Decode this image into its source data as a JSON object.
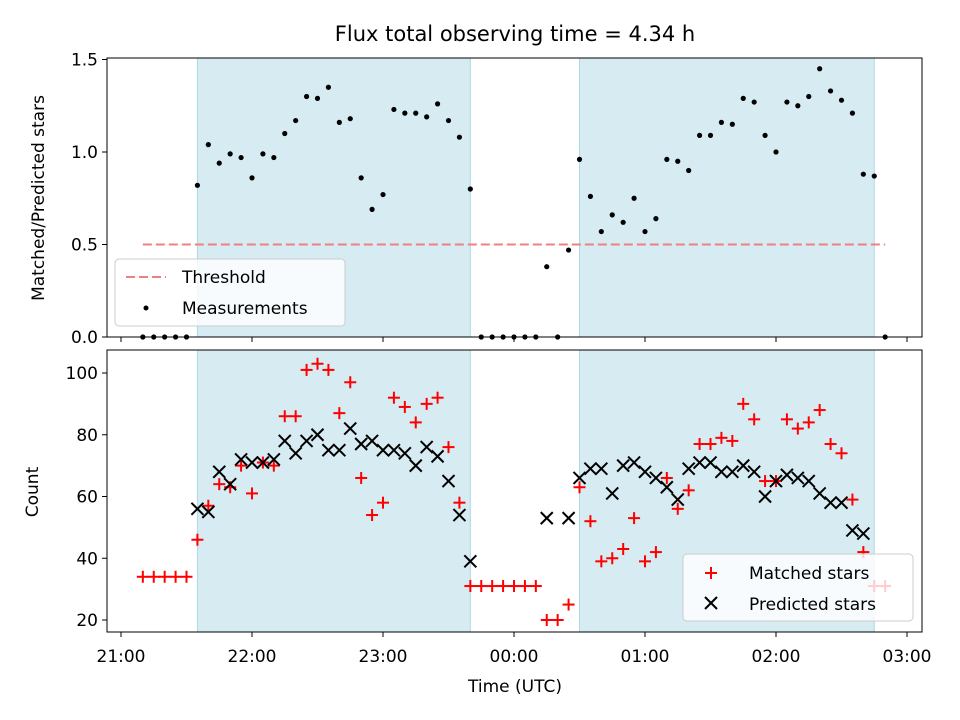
{
  "title": "Flux total observing time = 4.34 h",
  "chart_data": [
    {
      "type": "scatter",
      "ylabel": "Matched/Predicted stars",
      "ylim": [
        0,
        1.52
      ],
      "yticks": [
        "0.0",
        "0.5",
        "1.0",
        "1.5"
      ],
      "legend_position": "lower-left",
      "shaded_intervals": [
        [
          "21:35",
          "23:40"
        ],
        [
          "00:30",
          "02:45"
        ]
      ],
      "threshold": {
        "name": "Threshold",
        "value": 0.5,
        "x_range": [
          "21:10",
          "02:50"
        ],
        "color": "#f08080"
      },
      "series": [
        {
          "name": "Measurements",
          "marker": "dot",
          "color": "#000000",
          "points": [
            [
              "21:10",
              0
            ],
            [
              "21:15",
              0
            ],
            [
              "21:20",
              0
            ],
            [
              "21:25",
              0
            ],
            [
              "21:30",
              0
            ],
            [
              "21:35",
              0.82
            ],
            [
              "21:40",
              1.04
            ],
            [
              "21:45",
              0.94
            ],
            [
              "21:50",
              0.99
            ],
            [
              "21:55",
              0.97
            ],
            [
              "22:00",
              0.86
            ],
            [
              "22:05",
              0.99
            ],
            [
              "22:10",
              0.97
            ],
            [
              "22:15",
              1.1
            ],
            [
              "22:20",
              1.17
            ],
            [
              "22:25",
              1.3
            ],
            [
              "22:30",
              1.29
            ],
            [
              "22:35",
              1.35
            ],
            [
              "22:40",
              1.16
            ],
            [
              "22:45",
              1.18
            ],
            [
              "22:50",
              0.86
            ],
            [
              "22:55",
              0.69
            ],
            [
              "23:00",
              0.77
            ],
            [
              "23:05",
              1.23
            ],
            [
              "23:10",
              1.21
            ],
            [
              "23:15",
              1.21
            ],
            [
              "23:20",
              1.19
            ],
            [
              "23:25",
              1.26
            ],
            [
              "23:30",
              1.17
            ],
            [
              "23:35",
              1.08
            ],
            [
              "23:40",
              0.8
            ],
            [
              "23:45",
              0
            ],
            [
              "23:50",
              0
            ],
            [
              "23:55",
              0
            ],
            [
              "00:00",
              0
            ],
            [
              "00:05",
              0
            ],
            [
              "00:10",
              0
            ],
            [
              "00:15",
              0.38
            ],
            [
              "00:20",
              0
            ],
            [
              "00:25",
              0.47
            ],
            [
              "00:30",
              0.96
            ],
            [
              "00:35",
              0.76
            ],
            [
              "00:40",
              0.57
            ],
            [
              "00:45",
              0.66
            ],
            [
              "00:50",
              0.62
            ],
            [
              "00:55",
              0.75
            ],
            [
              "01:00",
              0.57
            ],
            [
              "01:05",
              0.64
            ],
            [
              "01:10",
              0.96
            ],
            [
              "01:15",
              0.95
            ],
            [
              "01:20",
              0.9
            ],
            [
              "01:25",
              1.09
            ],
            [
              "01:30",
              1.09
            ],
            [
              "01:35",
              1.16
            ],
            [
              "01:40",
              1.15
            ],
            [
              "01:45",
              1.29
            ],
            [
              "01:50",
              1.27
            ],
            [
              "01:55",
              1.09
            ],
            [
              "02:00",
              1.0
            ],
            [
              "02:05",
              1.27
            ],
            [
              "02:10",
              1.25
            ],
            [
              "02:15",
              1.3
            ],
            [
              "02:20",
              1.45
            ],
            [
              "02:25",
              1.33
            ],
            [
              "02:30",
              1.28
            ],
            [
              "02:35",
              1.21
            ],
            [
              "02:40",
              0.88
            ],
            [
              "02:45",
              0.87
            ],
            [
              "02:50",
              0
            ]
          ]
        }
      ]
    },
    {
      "type": "scatter",
      "xlabel": "Time (UTC)",
      "ylabel": "Count",
      "ylim": [
        16,
        107
      ],
      "yticks": [
        "20",
        "40",
        "60",
        "80",
        "100"
      ],
      "xticks": [
        "21:00",
        "22:00",
        "23:00",
        "00:00",
        "01:00",
        "02:00",
        "03:00"
      ],
      "legend_position": "lower-right",
      "shaded_intervals": [
        [
          "21:35",
          "23:40"
        ],
        [
          "00:30",
          "02:45"
        ]
      ],
      "series": [
        {
          "name": "Matched stars",
          "marker": "plus",
          "color": "#ff0000",
          "points": [
            [
              "21:10",
              34
            ],
            [
              "21:15",
              34
            ],
            [
              "21:20",
              34
            ],
            [
              "21:25",
              34
            ],
            [
              "21:30",
              34
            ],
            [
              "21:35",
              46
            ],
            [
              "21:40",
              57
            ],
            [
              "21:45",
              64
            ],
            [
              "21:50",
              63
            ],
            [
              "21:55",
              70
            ],
            [
              "22:00",
              61
            ],
            [
              "22:05",
              71
            ],
            [
              "22:10",
              70
            ],
            [
              "22:15",
              86
            ],
            [
              "22:20",
              86
            ],
            [
              "22:25",
              101
            ],
            [
              "22:30",
              103
            ],
            [
              "22:35",
              101
            ],
            [
              "22:40",
              87
            ],
            [
              "22:45",
              97
            ],
            [
              "22:50",
              66
            ],
            [
              "22:55",
              54
            ],
            [
              "23:00",
              58
            ],
            [
              "23:05",
              92
            ],
            [
              "23:10",
              89
            ],
            [
              "23:15",
              84
            ],
            [
              "23:20",
              90
            ],
            [
              "23:25",
              92
            ],
            [
              "23:30",
              76
            ],
            [
              "23:35",
              58
            ],
            [
              "23:40",
              31
            ],
            [
              "23:45",
              31
            ],
            [
              "23:50",
              31
            ],
            [
              "23:55",
              31
            ],
            [
              "00:00",
              31
            ],
            [
              "00:05",
              31
            ],
            [
              "00:10",
              31
            ],
            [
              "00:15",
              20
            ],
            [
              "00:20",
              20
            ],
            [
              "00:25",
              25
            ],
            [
              "00:30",
              63
            ],
            [
              "00:35",
              52
            ],
            [
              "00:40",
              39
            ],
            [
              "00:45",
              40
            ],
            [
              "00:50",
              43
            ],
            [
              "00:55",
              53
            ],
            [
              "01:00",
              39
            ],
            [
              "01:05",
              42
            ],
            [
              "01:10",
              66
            ],
            [
              "01:15",
              56
            ],
            [
              "01:20",
              62
            ],
            [
              "01:25",
              77
            ],
            [
              "01:30",
              77
            ],
            [
              "01:35",
              79
            ],
            [
              "01:40",
              78
            ],
            [
              "01:45",
              90
            ],
            [
              "01:50",
              85
            ],
            [
              "01:55",
              65
            ],
            [
              "02:00",
              65
            ],
            [
              "02:05",
              85
            ],
            [
              "02:10",
              82
            ],
            [
              "02:15",
              84
            ],
            [
              "02:20",
              88
            ],
            [
              "02:25",
              77
            ],
            [
              "02:30",
              74
            ],
            [
              "02:35",
              59
            ],
            [
              "02:40",
              42
            ],
            [
              "02:45",
              31
            ],
            [
              "02:50",
              31
            ]
          ]
        },
        {
          "name": "Predicted stars",
          "marker": "x",
          "color": "#000000",
          "points": [
            [
              "21:35",
              56
            ],
            [
              "21:40",
              55
            ],
            [
              "21:45",
              68
            ],
            [
              "21:50",
              64
            ],
            [
              "21:55",
              72
            ],
            [
              "22:00",
              71
            ],
            [
              "22:05",
              71
            ],
            [
              "22:10",
              72
            ],
            [
              "22:15",
              78
            ],
            [
              "22:20",
              74
            ],
            [
              "22:25",
              78
            ],
            [
              "22:30",
              80
            ],
            [
              "22:35",
              75
            ],
            [
              "22:40",
              75
            ],
            [
              "22:45",
              82
            ],
            [
              "22:50",
              77
            ],
            [
              "22:55",
              78
            ],
            [
              "23:00",
              75
            ],
            [
              "23:05",
              75
            ],
            [
              "23:10",
              74
            ],
            [
              "23:15",
              70
            ],
            [
              "23:20",
              76
            ],
            [
              "23:25",
              73
            ],
            [
              "23:30",
              65
            ],
            [
              "23:35",
              54
            ],
            [
              "23:40",
              39
            ],
            [
              "00:15",
              53
            ],
            [
              "00:25",
              53
            ],
            [
              "00:30",
              66
            ],
            [
              "00:35",
              69
            ],
            [
              "00:40",
              69
            ],
            [
              "00:45",
              61
            ],
            [
              "00:50",
              70
            ],
            [
              "00:55",
              71
            ],
            [
              "01:00",
              68
            ],
            [
              "01:05",
              66
            ],
            [
              "01:10",
              63
            ],
            [
              "01:15",
              59
            ],
            [
              "01:20",
              69
            ],
            [
              "01:25",
              71
            ],
            [
              "01:30",
              71
            ],
            [
              "01:35",
              68
            ],
            [
              "01:40",
              68
            ],
            [
              "01:45",
              70
            ],
            [
              "01:50",
              68
            ],
            [
              "01:55",
              60
            ],
            [
              "02:00",
              65
            ],
            [
              "02:05",
              67
            ],
            [
              "02:10",
              66
            ],
            [
              "02:15",
              65
            ],
            [
              "02:20",
              61
            ],
            [
              "02:25",
              58
            ],
            [
              "02:30",
              58
            ],
            [
              "02:35",
              49
            ],
            [
              "02:40",
              48
            ]
          ]
        }
      ]
    }
  ]
}
